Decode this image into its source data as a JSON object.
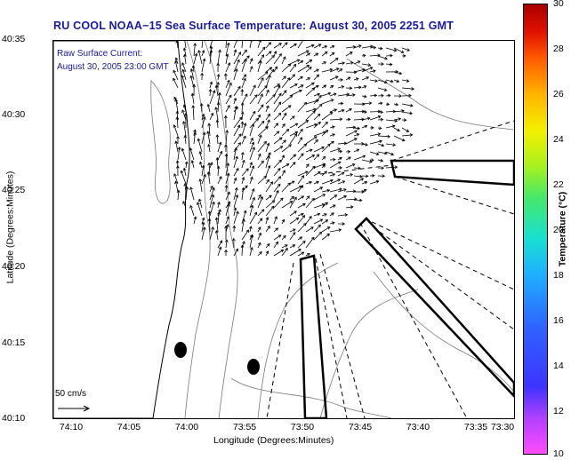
{
  "title": "RU COOL  NOAA−15  Sea Surface Temperature:  August 30, 2005 2251 GMT",
  "current_label": {
    "line1": "Raw Surface Current:",
    "line2": "August 30, 2005 23:00 GMT"
  },
  "axes": {
    "xlabel": "Longitude (Degrees:Minutes)",
    "ylabel": "Latitude (Degrees:Minutes)",
    "xticks": [
      "74:10",
      "74:05",
      "74:00",
      "73:55",
      "73:50",
      "73:45",
      "73:40",
      "73:35",
      "73:30"
    ],
    "yticks": [
      "40:35",
      "40:30",
      "40:25",
      "40:20",
      "40:15",
      "40:10"
    ]
  },
  "scale_arrow": {
    "label": "50 cm/s"
  },
  "colorbar": {
    "label": "Temperature (°C)",
    "ticks": [
      "30",
      "28",
      "26",
      "24",
      "22",
      "20",
      "18",
      "16",
      "14",
      "12",
      "10"
    ]
  },
  "colors": {
    "title": "#1a1aa0",
    "contour": "#7a7a7a",
    "land": "#ffffff"
  }
}
